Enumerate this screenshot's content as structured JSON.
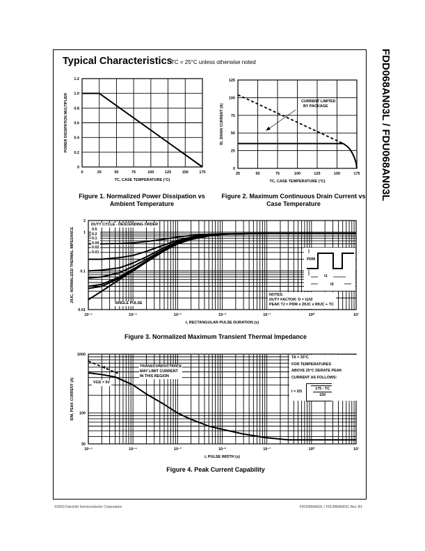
{
  "page": {
    "title": "Typical Characteristics",
    "subtitle": "TC = 25°C unless otherwise noted",
    "side_title": "FDD068AN03L / FDU068AN03L",
    "footer_left": "©2003 Fairchild Semiconductor Corporation",
    "footer_right": "FDD068AN03L / FDU068AN03L Rev. B1"
  },
  "annotations": {
    "fig2_label": [
      "CURRENT LIMITED",
      "BY PACKAGE"
    ],
    "fig3_duty_title": "DUTY CYCLE - DESCENDING ORDER",
    "fig3_duty_labels": [
      "0.5",
      "0.2",
      "0.1",
      "0.05",
      "0.02",
      "0.01"
    ],
    "fig3_single_pulse": "SINGLE PULSE",
    "fig3_notes": [
      "NOTES:",
      "DUTY FACTOR: D = t1/t2",
      "PEAK TJ = PDM x ZθJC x RθJC + TC"
    ],
    "fig3_inset": {
      "pdm": "PDM",
      "t1": "t1",
      "t2": "t2"
    },
    "fig4_vgs": "VGS = 5V",
    "fig4_transconductance": [
      "TRANSCONDUCTANCE",
      "MAY LIMIT CURRENT",
      "IN THIS REGION"
    ],
    "fig4_derate": [
      "TA = 25°C",
      "FOR TEMPERATURES",
      "ABOVE 25°C DERATE PEAK",
      "CURRENT AS FOLLOWS:"
    ],
    "fig4_formula": {
      "lhs": "I = I25",
      "num": "175 - TC",
      "den": "150"
    }
  },
  "chart_data": [
    {
      "id": "fig1",
      "type": "line",
      "title": "Figure 1.  Normalized Power Dissipation vs Ambient Temperature",
      "xlabel": "TC, CASE TEMPERATURE (°C)",
      "ylabel": "POWER DISSIPATION MULTIPLIER",
      "xscale": "linear",
      "yscale": "linear",
      "xlim": [
        0,
        175
      ],
      "ylim": [
        0,
        1.2
      ],
      "grid": true,
      "xticks": [
        0,
        25,
        50,
        75,
        100,
        125,
        150,
        175
      ],
      "xtick_labels": [
        "0",
        "25",
        "50",
        "75",
        "100",
        "125",
        "150",
        "175"
      ],
      "yticks": [
        0,
        0.2,
        0.4,
        0.6,
        0.8,
        1.0,
        1.2
      ],
      "ytick_labels": [
        "0",
        "0.2",
        "0.4",
        "0.6",
        "0.8",
        "1.0",
        "1.2"
      ],
      "series": [
        {
          "name": "multiplier",
          "style": "solid",
          "x": [
            0,
            25,
            175
          ],
          "y": [
            1.0,
            1.0,
            0
          ]
        }
      ]
    },
    {
      "id": "fig2",
      "type": "line",
      "title": "Figure 2.  Maximum Continuous Drain Current vs Case Temperature",
      "xlabel": "TC, CASE TEMPERATURE (°C)",
      "ylabel": "ID, DRAIN CURRENT (A)",
      "xscale": "linear",
      "yscale": "linear",
      "xlim": [
        25,
        175
      ],
      "ylim": [
        0,
        125
      ],
      "grid": true,
      "xticks": [
        25,
        50,
        75,
        100,
        125,
        150,
        175
      ],
      "xtick_labels": [
        "25",
        "50",
        "75",
        "100",
        "125",
        "150",
        "175"
      ],
      "yticks": [
        0,
        25,
        50,
        75,
        100,
        125
      ],
      "ytick_labels": [
        "0",
        "25",
        "50",
        "75",
        "100",
        "125"
      ],
      "series": [
        {
          "name": "package limit",
          "style": "solid",
          "x": [
            25,
            158,
            163,
            167,
            170,
            172,
            174,
            175
          ],
          "y": [
            35,
            35,
            31,
            26,
            20,
            15,
            8,
            0
          ]
        },
        {
          "name": "silicon limit",
          "style": "dashed",
          "x": [
            25,
            158
          ],
          "y": [
            104,
            35
          ]
        }
      ]
    },
    {
      "id": "fig3",
      "type": "line",
      "title": "Figure 3.  Normalized Maximum Transient Thermal Impedance",
      "xlabel": "t, RECTANGULAR PULSE DURATION (s)",
      "ylabel": "ZθJC, NORMALIZED THERMAL IMPEDANCE",
      "xscale": "log",
      "yscale": "log",
      "xlim": [
        1e-05,
        10
      ],
      "ylim": [
        0.01,
        2
      ],
      "grid": true,
      "xticks": [
        1e-05,
        0.0001,
        0.001,
        0.01,
        0.1,
        1,
        10
      ],
      "xtick_labels": [
        "10⁻⁵",
        "10⁻⁴",
        "10⁻³",
        "10⁻²",
        "10⁻¹",
        "10⁰",
        "10¹"
      ],
      "yticks": [
        0.01,
        0.1,
        1,
        2
      ],
      "ytick_labels": [
        "0.01",
        "0.1",
        "1",
        "2"
      ],
      "x": [
        1e-05,
        2e-05,
        5e-05,
        0.0001,
        0.0002,
        0.0005,
        0.001,
        0.002,
        0.005,
        0.01,
        0.1,
        10
      ],
      "series": [
        {
          "name": "D=0.5",
          "style": "solid",
          "y": [
            0.5,
            0.5,
            0.51,
            0.53,
            0.57,
            0.66,
            0.75,
            0.82,
            0.88,
            0.91,
            0.93,
            0.93
          ]
        },
        {
          "name": "D=0.2",
          "style": "solid",
          "y": [
            0.2,
            0.2,
            0.22,
            0.25,
            0.32,
            0.47,
            0.62,
            0.74,
            0.85,
            0.9,
            0.93,
            0.93
          ]
        },
        {
          "name": "D=0.1",
          "style": "solid",
          "y": [
            0.1,
            0.105,
            0.12,
            0.16,
            0.23,
            0.4,
            0.57,
            0.7,
            0.83,
            0.89,
            0.93,
            0.93
          ]
        },
        {
          "name": "D=0.05",
          "style": "solid",
          "y": [
            0.065,
            0.07,
            0.09,
            0.13,
            0.2,
            0.36,
            0.54,
            0.68,
            0.82,
            0.89,
            0.93,
            0.93
          ]
        },
        {
          "name": "D=0.02",
          "style": "solid",
          "y": [
            0.04,
            0.045,
            0.07,
            0.11,
            0.18,
            0.34,
            0.52,
            0.67,
            0.81,
            0.88,
            0.93,
            0.93
          ]
        },
        {
          "name": "D=0.01",
          "style": "solid",
          "y": [
            0.035,
            0.04,
            0.065,
            0.1,
            0.17,
            0.33,
            0.5,
            0.65,
            0.8,
            0.88,
            0.93,
            0.93
          ]
        },
        {
          "name": "Single pulse",
          "style": "solid",
          "y": [
            0.018,
            0.03,
            0.06,
            0.1,
            0.17,
            0.33,
            0.5,
            0.65,
            0.8,
            0.88,
            0.93,
            0.93
          ]
        }
      ]
    },
    {
      "id": "fig4",
      "type": "line",
      "title": "Figure 4.  Peak Current Capability",
      "xlabel": "t, PULSE WIDTH (s)",
      "ylabel": "IDM, PEAK CURRENT (A)",
      "xscale": "log",
      "yscale": "log",
      "xlim": [
        1e-05,
        10
      ],
      "ylim": [
        30,
        1000
      ],
      "grid": true,
      "xticks": [
        1e-05,
        0.0001,
        0.001,
        0.01,
        0.1,
        1,
        10
      ],
      "xtick_labels": [
        "10⁻⁵",
        "10⁻⁴",
        "10⁻³",
        "10⁻²",
        "10⁻¹",
        "10⁰",
        "10¹"
      ],
      "yticks": [
        30,
        100,
        1000
      ],
      "ytick_labels": [
        "30",
        "100",
        "1000"
      ],
      "series": [
        {
          "name": "VGS = 5V",
          "style": "solid",
          "x": [
            1e-05,
            2e-05,
            4e-05,
            0.0001,
            0.0002,
            0.0005,
            0.001,
            0.002,
            0.005,
            0.01,
            0.03,
            0.1,
            0.3,
            1,
            10
          ],
          "y": [
            480,
            450,
            410,
            300,
            210,
            140,
            100,
            78,
            60,
            53,
            44,
            38,
            35,
            35,
            35
          ]
        },
        {
          "name": "transconductance limit",
          "style": "dashed",
          "x": [
            1e-05,
            5e-05
          ],
          "y": [
            760,
            460
          ]
        }
      ]
    }
  ]
}
